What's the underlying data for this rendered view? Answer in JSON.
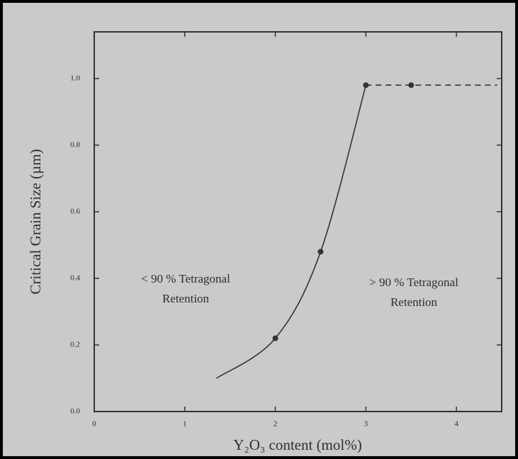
{
  "chart_data": {
    "type": "line",
    "xlabel": "Y₂O₃ content (mol%)",
    "ylabel": "Critical Grain Size (µm)",
    "xlim": [
      0,
      4.5
    ],
    "xticks": [
      0,
      1,
      2,
      3,
      4
    ],
    "ylim": [
      0,
      1.14
    ],
    "yticks": [
      {
        "value": 0,
        "label": "0.0"
      },
      0.2,
      0.4,
      0.6,
      0.8,
      {
        "value": 1,
        "label": "1.0"
      }
    ],
    "color": "#333333",
    "series": [
      {
        "x": [
          1.35,
          2,
          2.5,
          3
        ],
        "values": [
          0.1,
          0.22,
          0.48,
          0.98
        ],
        "dashed": false
      },
      {
        "x": [
          3,
          3.5,
          4.45
        ],
        "values": [
          0.98,
          0.98,
          0.98
        ],
        "dashed": true
      }
    ],
    "markers": {
      "x": [
        2,
        2.5,
        3,
        3.5
      ],
      "values": [
        0.22,
        0.48,
        0.98,
        0.98
      ]
    },
    "annotations": [
      {
        "lines": [
          "< 90 % Tetragonal",
          "Retention"
        ]
      },
      {
        "lines": [
          "> 90 % Tetragonal",
          "Retention"
        ]
      }
    ]
  }
}
